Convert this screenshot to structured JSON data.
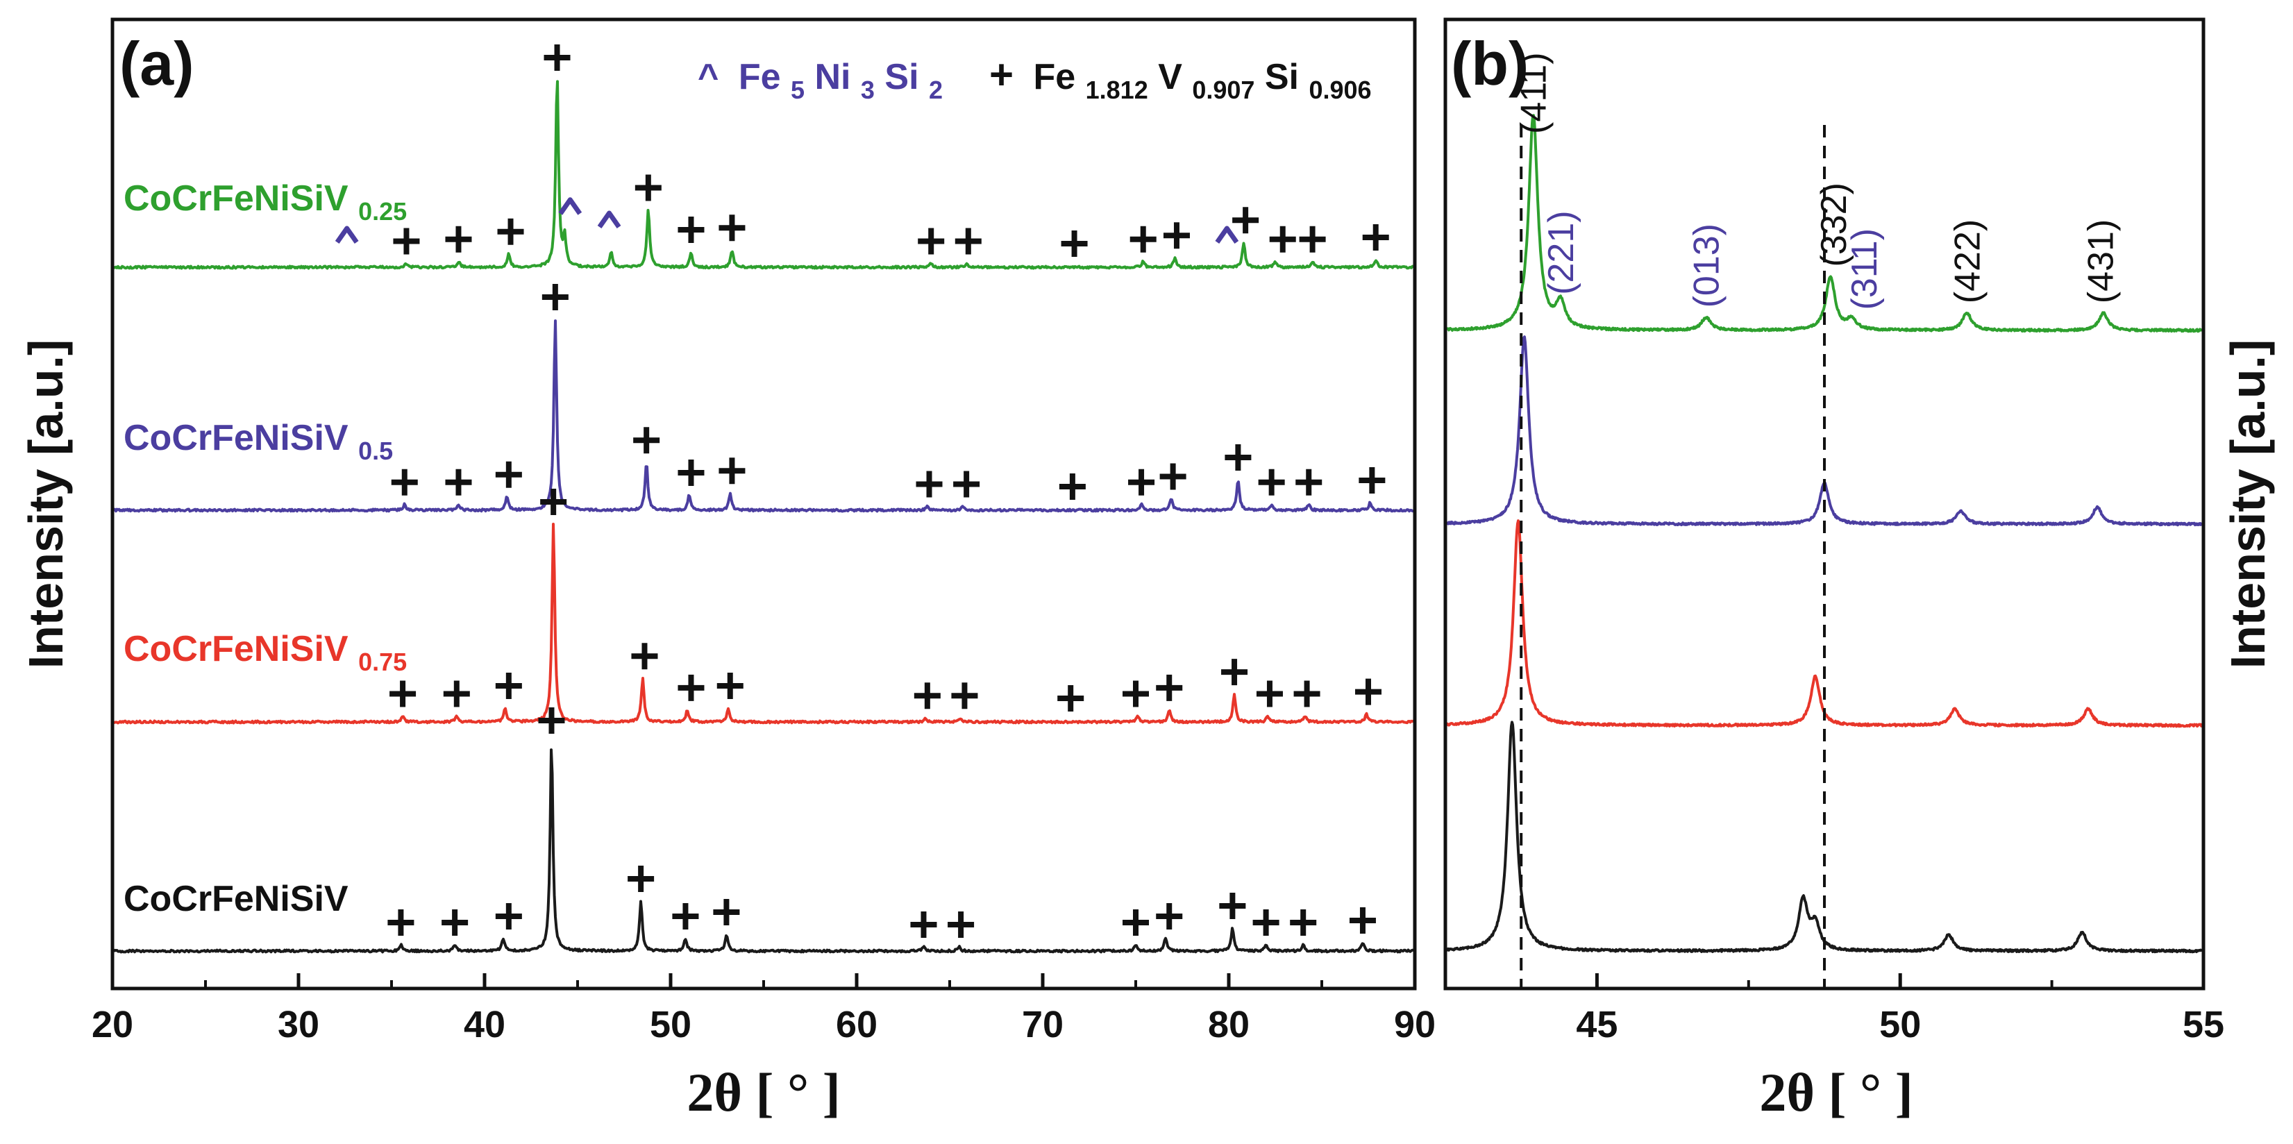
{
  "colors": {
    "CoCrFeNiSiV": "#1a1a1a",
    "CoCrFeNiSiV0.75": "#e8362a",
    "CoCrFeNiSiV0.5": "#4b3ea0",
    "CoCrFeNiSiV0.25": "#2ea02e",
    "phase_fe5ni3si2": "#4b3ea0",
    "phase_fevsi": "#111111"
  },
  "chart_data": [
    {
      "type": "line",
      "panel_label": "(a)",
      "xlabel": "2θ [ ° ]",
      "ylabel": "Intensity [a.u.]",
      "xlim": [
        20,
        90
      ],
      "xticks": [
        "20",
        "30",
        "40",
        "50",
        "60",
        "70",
        "80",
        "90"
      ],
      "legend": {
        "fe5ni3si2": {
          "marker": "^",
          "base": "Fe",
          "sub1": "5",
          "mid1": "Ni",
          "sub2": "3",
          "mid2": "Si",
          "sub3": "2"
        },
        "fevsi": {
          "marker": "+",
          "base": "Fe",
          "sub1": "1.812",
          "mid1": "V",
          "sub2": "0.907",
          "mid2": "Si",
          "sub3": "0.906"
        }
      },
      "series": [
        {
          "name": "CoCrFeNiSiV",
          "label_base": "CoCrFeNiSiV",
          "label_sub": "",
          "peaks": [
            [
              35.5,
              0.3
            ],
            [
              38.4,
              0.3
            ],
            [
              41.0,
              0.6
            ],
            [
              43.6,
              10.0
            ],
            [
              48.4,
              2.4
            ],
            [
              50.8,
              0.6
            ],
            [
              53.0,
              0.8
            ],
            [
              63.6,
              0.2
            ],
            [
              65.5,
              0.2
            ],
            [
              75.0,
              0.3
            ],
            [
              76.6,
              0.6
            ],
            [
              80.2,
              1.1
            ],
            [
              82.0,
              0.3
            ],
            [
              84.0,
              0.3
            ],
            [
              87.2,
              0.4
            ]
          ],
          "plus": [
            35.5,
            38.4,
            41.3,
            43.6,
            48.4,
            50.8,
            53.0,
            63.6,
            65.6,
            75.0,
            76.8,
            80.2,
            82.0,
            84.0,
            87.2
          ],
          "caret": []
        },
        {
          "name": "CoCrFeNiSiV0.75",
          "label_base": "CoCrFeNiSiV",
          "label_sub": "0.75",
          "peaks": [
            [
              35.6,
              0.3
            ],
            [
              38.5,
              0.3
            ],
            [
              41.1,
              0.7
            ],
            [
              43.7,
              10.0
            ],
            [
              48.5,
              2.2
            ],
            [
              50.9,
              0.6
            ],
            [
              53.1,
              0.7
            ],
            [
              63.7,
              0.2
            ],
            [
              65.6,
              0.2
            ],
            [
              75.1,
              0.3
            ],
            [
              76.8,
              0.6
            ],
            [
              80.3,
              1.4
            ],
            [
              82.1,
              0.3
            ],
            [
              84.1,
              0.3
            ],
            [
              87.4,
              0.4
            ]
          ],
          "plus": [
            35.6,
            38.5,
            41.3,
            43.7,
            48.6,
            51.1,
            53.2,
            63.8,
            65.8,
            71.5,
            75.0,
            76.8,
            80.3,
            82.2,
            84.2,
            87.5
          ],
          "caret": []
        },
        {
          "name": "CoCrFeNiSiV0.5",
          "label_base": "CoCrFeNiSiV",
          "label_sub": "0.5",
          "peaks": [
            [
              35.7,
              0.3
            ],
            [
              38.6,
              0.3
            ],
            [
              41.2,
              0.7
            ],
            [
              43.8,
              10.0
            ],
            [
              48.7,
              2.5
            ],
            [
              51.0,
              0.8
            ],
            [
              53.2,
              0.9
            ],
            [
              63.8,
              0.2
            ],
            [
              65.7,
              0.2
            ],
            [
              75.3,
              0.3
            ],
            [
              76.9,
              0.6
            ],
            [
              80.5,
              1.6
            ],
            [
              82.3,
              0.3
            ],
            [
              84.3,
              0.3
            ],
            [
              87.6,
              0.4
            ]
          ],
          "plus": [
            35.7,
            38.6,
            41.3,
            43.8,
            48.7,
            51.1,
            53.3,
            63.9,
            65.9,
            71.6,
            75.3,
            77.0,
            80.5,
            82.3,
            84.3,
            87.7
          ],
          "caret": []
        },
        {
          "name": "CoCrFeNiSiV0.25",
          "label_base": "CoCrFeNiSiV",
          "label_sub": "0.25",
          "peaks": [
            [
              35.8,
              0.2
            ],
            [
              38.6,
              0.3
            ],
            [
              41.3,
              0.7
            ],
            [
              43.9,
              10.0
            ],
            [
              44.3,
              1.5
            ],
            [
              46.8,
              0.8
            ],
            [
              48.8,
              3.0
            ],
            [
              51.1,
              0.8
            ],
            [
              53.3,
              0.9
            ],
            [
              64.0,
              0.2
            ],
            [
              65.9,
              0.2
            ],
            [
              75.4,
              0.3
            ],
            [
              77.1,
              0.5
            ],
            [
              80.8,
              1.3
            ],
            [
              82.5,
              0.3
            ],
            [
              84.5,
              0.3
            ],
            [
              87.9,
              0.4
            ]
          ],
          "plus": [
            35.8,
            38.6,
            41.4,
            43.9,
            48.8,
            51.1,
            53.3,
            64.0,
            66.0,
            71.7,
            75.4,
            77.2,
            80.9,
            82.9,
            84.5,
            87.9
          ],
          "caret": [
            32.6,
            44.6,
            46.7,
            79.9
          ]
        }
      ]
    },
    {
      "type": "line",
      "panel_label": "(b)",
      "xlabel": "2θ [ ° ]",
      "ylabel": "Intensity [a.u.]",
      "xlim": [
        42.5,
        55
      ],
      "xticks": [
        "45",
        "50",
        "55"
      ],
      "dashed_lines_x": [
        43.75,
        48.75
      ],
      "annotations": [
        {
          "text": "(411)",
          "x": 43.95,
          "color": "#111111"
        },
        {
          "text": "(221)",
          "x": 44.4,
          "color": "#4b3ea0"
        },
        {
          "text": "(013)",
          "x": 46.8,
          "color": "#4b3ea0"
        },
        {
          "text": "(332)",
          "x": 48.9,
          "color": "#111111"
        },
        {
          "text": "(311)",
          "x": 49.4,
          "color": "#4b3ea0"
        },
        {
          "text": "(422)",
          "x": 51.1,
          "color": "#111111"
        },
        {
          "text": "(431)",
          "x": 53.3,
          "color": "#111111"
        }
      ],
      "series": [
        {
          "name": "CoCrFeNiSiV",
          "peaks": [
            [
              43.6,
              10.0
            ],
            [
              48.4,
              2.2
            ],
            [
              48.6,
              1.1
            ],
            [
              50.8,
              0.7
            ],
            [
              53.0,
              0.8
            ]
          ]
        },
        {
          "name": "CoCrFeNiSiV0.75",
          "peaks": [
            [
              43.7,
              10.0
            ],
            [
              48.6,
              2.4
            ],
            [
              50.9,
              0.8
            ],
            [
              53.1,
              0.8
            ]
          ]
        },
        {
          "name": "CoCrFeNiSiV0.5",
          "peaks": [
            [
              43.8,
              10.0
            ],
            [
              48.75,
              2.2
            ],
            [
              51.0,
              0.7
            ],
            [
              53.25,
              0.9
            ]
          ]
        },
        {
          "name": "CoCrFeNiSiV0.25",
          "peaks": [
            [
              43.95,
              10.0
            ],
            [
              44.4,
              1.2
            ],
            [
              46.8,
              0.6
            ],
            [
              48.85,
              2.5
            ],
            [
              49.2,
              0.5
            ],
            [
              51.1,
              0.8
            ],
            [
              53.35,
              0.8
            ]
          ]
        }
      ]
    }
  ]
}
